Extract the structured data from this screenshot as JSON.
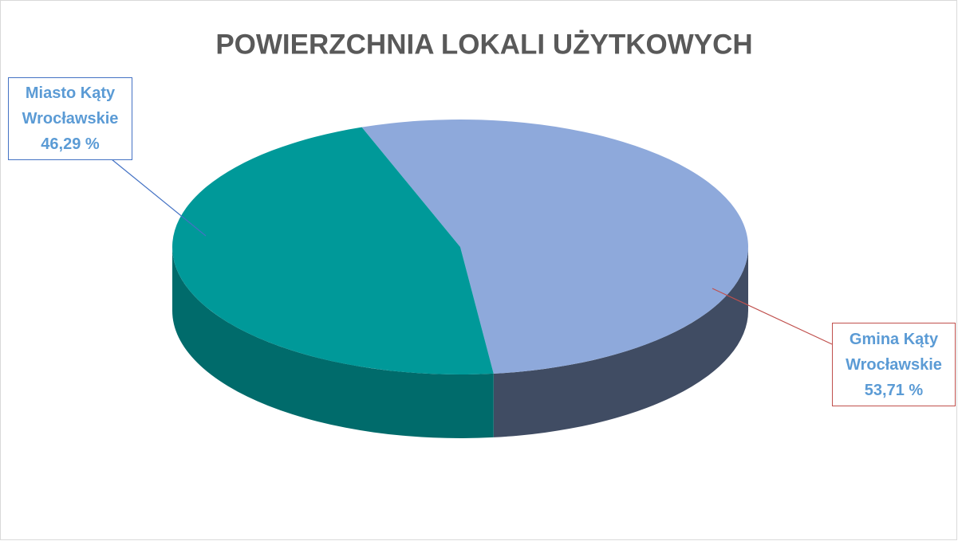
{
  "chart_data": {
    "type": "pie3d",
    "title": "POWIERZCHNIA LOKALI UŻYTKOWYCH",
    "categories": [
      "Miasto Kąty Wrocławskie",
      "Gmina Kąty Wrocławskie"
    ],
    "values": [
      46.29,
      53.71
    ],
    "value_labels": [
      "46,29 %",
      "53,71 %"
    ],
    "colors": [
      "#009999",
      "#8EA9DB"
    ]
  }
}
